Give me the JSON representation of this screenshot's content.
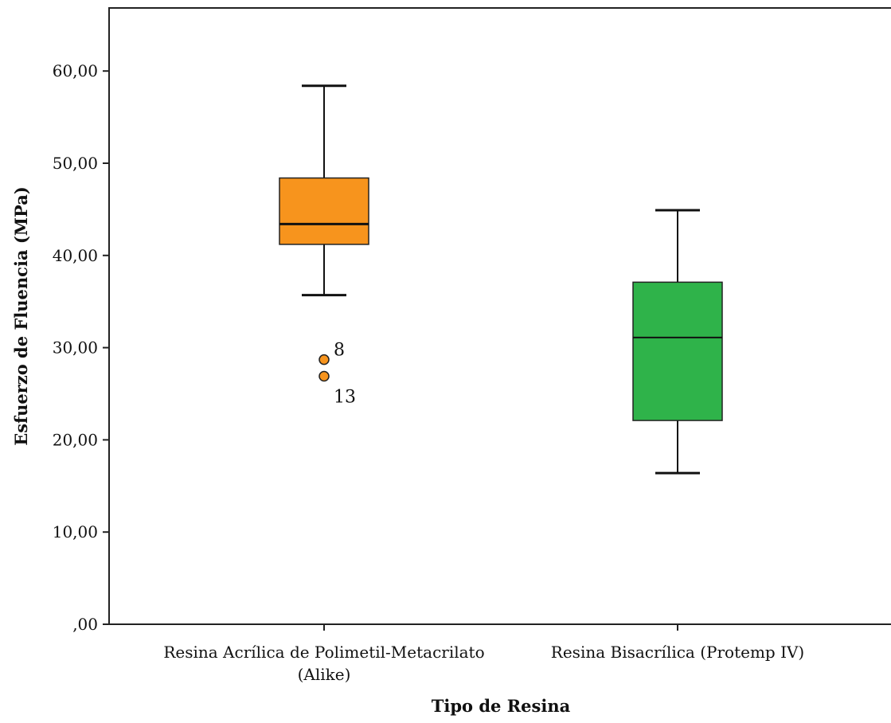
{
  "chart_data": {
    "type": "box",
    "xlabel": "Tipo de Resina",
    "ylabel": "Esfuerzo de Fluencia (MPa)",
    "ylim": [
      0,
      65
    ],
    "yticks": [
      0,
      10,
      20,
      30,
      40,
      50,
      60
    ],
    "ytick_labels": [
      ",00",
      "10,00",
      "20,00",
      "30,00",
      "40,00",
      "50,00",
      "60,00"
    ],
    "grid": false,
    "categories": [
      {
        "label_lines": [
          "Resina Acrílica de Polimetil-Metacrilato",
          "(Alike)"
        ],
        "color": "#f7941d",
        "whisker_low": 35.7,
        "q1": 41.2,
        "median": 43.4,
        "q3": 48.4,
        "whisker_high": 58.4,
        "outliers": [
          {
            "value": 28.7,
            "label": "8"
          },
          {
            "value": 26.9,
            "label": "13"
          }
        ]
      },
      {
        "label_lines": [
          "Resina Bisacrílica (Protemp IV)"
        ],
        "color": "#2fb34a",
        "whisker_low": 16.4,
        "q1": 22.1,
        "median": 31.1,
        "q3": 37.1,
        "whisker_high": 44.9,
        "outliers": []
      }
    ]
  }
}
